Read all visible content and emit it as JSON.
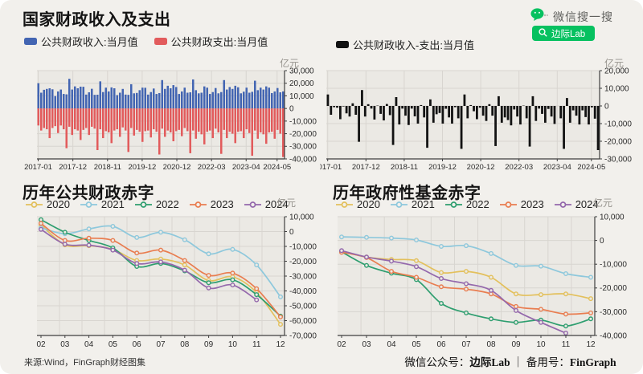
{
  "page": {
    "source_note": "来源:Wind，FinGraph财经图集",
    "footer": {
      "prefix": "微信公众号：",
      "account": "边际Lab",
      "separator": " ｜ 备用号：",
      "backup": "FinGraph"
    },
    "wechat": {
      "brand": "微信搜一搜",
      "button": "边际Lab",
      "green": "#07C160"
    }
  },
  "chart_data": [
    {
      "id": "fiscal-revenue-expenditure",
      "type": "bar",
      "title": "国家财政收入及支出",
      "unit": "亿元",
      "ylim": [
        -40000,
        30000
      ],
      "ytick_step": 10000,
      "xticks": [
        {
          "label": "2017-01",
          "f": 0.005
        },
        {
          "label": "2017-12",
          "f": 0.145
        },
        {
          "label": "2018-11",
          "f": 0.285
        },
        {
          "label": "2019-12",
          "f": 0.425
        },
        {
          "label": "2020-12",
          "f": 0.565
        },
        {
          "label": "2022-03",
          "f": 0.705
        },
        {
          "label": "2023-04",
          "f": 0.845
        },
        {
          "label": "2024-05",
          "f": 0.97
        }
      ],
      "series": [
        {
          "name": "公共财政收入:当月值",
          "color": "#4365b2",
          "values": [
            20000,
            12500,
            14800,
            15500,
            16000,
            15200,
            9800,
            13500,
            15000,
            11500,
            11200,
            23500,
            15000,
            17500,
            16000,
            17300,
            17200,
            11000,
            12800,
            15600,
            10800,
            10900,
            21500,
            13000,
            16500,
            13500,
            16700,
            16000,
            10600,
            12500,
            15500,
            11000,
            10800,
            19200,
            12000,
            12300,
            14500,
            16500,
            16400,
            11000,
            13000,
            15800,
            11500,
            12200,
            22500,
            15500,
            18000,
            16000,
            18500,
            17000,
            11500,
            13500,
            16500,
            12500,
            12800,
            23000,
            14500,
            12000,
            12500,
            17500,
            16500,
            11500,
            13000,
            16200,
            12000,
            13000,
            22500,
            15000,
            17000,
            15500,
            18000,
            16800,
            12000,
            13300,
            16500,
            12500,
            13200,
            22000,
            14500,
            16500,
            15000,
            17500,
            16500,
            12200,
            13500,
            16200,
            12800,
            13500
          ]
        },
        {
          "name": "公共财政支出:当月值",
          "color": "#e25b5c",
          "values": [
            -13500,
            -17500,
            -15500,
            -16500,
            -23500,
            -15500,
            -14000,
            -19500,
            -13500,
            -16500,
            -31500,
            -14500,
            -21000,
            -16500,
            -17500,
            -25000,
            -17000,
            -15500,
            -21000,
            -14500,
            -16000,
            -33000,
            -16500,
            -23500,
            -18000,
            -19000,
            -27500,
            -17500,
            -16500,
            -22500,
            -15000,
            -17500,
            -34500,
            -15500,
            -21500,
            -17000,
            -18500,
            -26500,
            -18000,
            -17500,
            -23000,
            -16500,
            -18500,
            -36500,
            -16000,
            -22500,
            -17500,
            -19000,
            -26000,
            -18000,
            -17000,
            -22000,
            -15500,
            -18000,
            -35500,
            -17500,
            -24000,
            -18500,
            -20500,
            -28500,
            -18500,
            -17500,
            -23500,
            -16000,
            -19000,
            -36000,
            -17000,
            -23500,
            -18500,
            -20000,
            -27500,
            -18500,
            -18000,
            -23500,
            -16500,
            -19500,
            -37500,
            -17500,
            -24000,
            -19000,
            -20500,
            -28000,
            -19000,
            -18500,
            -24000,
            -17000,
            -20000,
            -38500
          ]
        }
      ]
    },
    {
      "id": "fiscal-balance",
      "type": "bar",
      "unit": "亿元",
      "ylim": [
        -30000,
        20000
      ],
      "ytick_step": 10000,
      "xticks": [
        {
          "label": "2017-01",
          "f": 0.005
        },
        {
          "label": "2017-12",
          "f": 0.145
        },
        {
          "label": "2018-11",
          "f": 0.285
        },
        {
          "label": "2019-12",
          "f": 0.425
        },
        {
          "label": "2020-12",
          "f": 0.565
        },
        {
          "label": "2022-03",
          "f": 0.705
        },
        {
          "label": "2023-04",
          "f": 0.845
        },
        {
          "label": "2024-05",
          "f": 0.97
        }
      ],
      "series": [
        {
          "name": "公共财政收入-支出:当月值",
          "color": "#121212",
          "values": [
            6500,
            -5000,
            -700,
            -1000,
            -7500,
            -300,
            -4200,
            -6000,
            1500,
            -5000,
            -20300,
            9000,
            -6000,
            1000,
            -1500,
            -7700,
            200,
            -4500,
            -8200,
            1100,
            -5200,
            -22100,
            5000,
            -10500,
            -1500,
            -5500,
            -10800,
            -1500,
            -5900,
            -10000,
            500,
            -6500,
            -23700,
            3700,
            -9500,
            -4700,
            -4000,
            -10000,
            -1600,
            -6500,
            -10000,
            -700,
            -7000,
            -24300,
            6500,
            -7000,
            500,
            -3000,
            -7500,
            -1000,
            -5500,
            -8500,
            1000,
            -5500,
            -22700,
            5500,
            -9500,
            -6500,
            -8000,
            -11000,
            -2000,
            -6000,
            -10500,
            200,
            -7000,
            -23000,
            5500,
            -8500,
            -1500,
            -4500,
            -9500,
            -1700,
            -6000,
            -10200,
            0,
            -7000,
            -24300,
            4500,
            -9500,
            -2500,
            -5500,
            -10500,
            -2500,
            -6300,
            -10500,
            -800,
            -7200,
            -25000
          ]
        }
      ]
    },
    {
      "id": "public-fiscal-deficit",
      "type": "line",
      "title": "历年公共财政赤字",
      "unit": "亿元",
      "ylim": [
        -70000,
        10000
      ],
      "ytick_step": 10000,
      "x_labels": [
        "02",
        "03",
        "04",
        "05",
        "06",
        "07",
        "08",
        "09",
        "10",
        "11",
        "12"
      ],
      "series": [
        {
          "name": "2020",
          "color": "#e3c05c",
          "values": [
            4500,
            -9000,
            -9500,
            -12000,
            -19500,
            -18500,
            -22500,
            -33000,
            -30500,
            -41000,
            -62500
          ]
        },
        {
          "name": "2021",
          "color": "#8ec8dc",
          "values": [
            2500,
            -1500,
            1800,
            3500,
            -4000,
            -500,
            -5500,
            -15000,
            -12000,
            -22500,
            -44000
          ]
        },
        {
          "name": "2022",
          "color": "#2e9e6f",
          "values": [
            8000,
            -500,
            -6000,
            -11000,
            -23500,
            -21500,
            -26500,
            -34500,
            -32500,
            -42500,
            -57000
          ]
        },
        {
          "name": "2023",
          "color": "#e97d50",
          "values": [
            5500,
            -6000,
            -4500,
            -6000,
            -14500,
            -12500,
            -19500,
            -29500,
            -28000,
            -38500,
            -57500
          ]
        },
        {
          "name": "2024",
          "color": "#9468ac",
          "values": [
            1500,
            -8500,
            -9200,
            -12500,
            -21500,
            -20500,
            -26000,
            -38000,
            -36000,
            -46000,
            null
          ]
        }
      ]
    },
    {
      "id": "government-fund-deficit",
      "type": "line",
      "title": "历年政府性基金赤字",
      "unit": "亿元",
      "ylim": [
        -40000,
        10000
      ],
      "ytick_step": 10000,
      "x_labels": [
        "02",
        "03",
        "04",
        "05",
        "06",
        "07",
        "08",
        "09",
        "10",
        "11",
        "12"
      ],
      "series": [
        {
          "name": "2020",
          "color": "#e3c05c",
          "values": [
            -4500,
            -7000,
            -8000,
            -8500,
            -13500,
            -13000,
            -15500,
            -22500,
            -22800,
            -22500,
            -24500
          ]
        },
        {
          "name": "2021",
          "color": "#8ec8dc",
          "values": [
            1500,
            1300,
            1000,
            200,
            -2500,
            -2200,
            -5500,
            -10500,
            -10800,
            -14000,
            -15500
          ]
        },
        {
          "name": "2022",
          "color": "#2e9e6f",
          "values": [
            -4800,
            -10500,
            -13800,
            -16500,
            -26500,
            -30500,
            -33000,
            -34500,
            -33500,
            -36000,
            -33000
          ]
        },
        {
          "name": "2023",
          "color": "#e97d50",
          "values": [
            -5000,
            -7200,
            -13000,
            -15500,
            -19500,
            -20500,
            -22500,
            -27800,
            -29000,
            -31000,
            -30500
          ]
        },
        {
          "name": "2024",
          "color": "#9468ac",
          "values": [
            -4300,
            -7000,
            -8700,
            -11000,
            -16000,
            -18200,
            -21000,
            -29500,
            -34500,
            -39000,
            null
          ]
        }
      ]
    }
  ]
}
